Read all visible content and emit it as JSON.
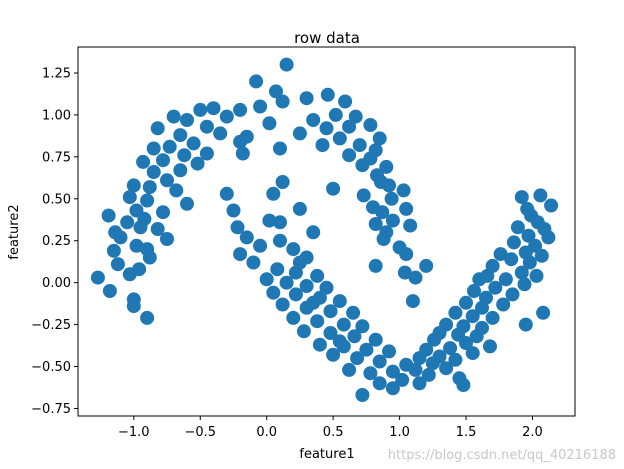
{
  "chart_data": {
    "type": "scatter",
    "title": "row data",
    "xlabel": "feature1",
    "ylabel": "feature2",
    "xlim": [
      -1.42,
      2.32
    ],
    "ylim": [
      -0.795,
      1.405
    ],
    "xticks": [
      -1.0,
      -0.5,
      0.0,
      0.5,
      1.0,
      1.5,
      2.0
    ],
    "xtick_labels": [
      "−1.0",
      "−0.5",
      "0.0",
      "0.5",
      "1.0",
      "1.5",
      "2.0"
    ],
    "yticks": [
      -0.75,
      -0.5,
      -0.25,
      0.0,
      0.25,
      0.5,
      0.75,
      1.0,
      1.25
    ],
    "ytick_labels": [
      "−0.75",
      "−0.50",
      "−0.25",
      "0.00",
      "0.25",
      "0.50",
      "0.75",
      "1.00",
      "1.25"
    ],
    "grid": false,
    "marker_color": "#1f77b4",
    "points": [
      [
        0.15,
        1.3
      ],
      [
        -0.08,
        1.2
      ],
      [
        0.07,
        1.14
      ],
      [
        0.3,
        1.1
      ],
      [
        0.46,
        1.12
      ],
      [
        0.59,
        1.08
      ],
      [
        -0.2,
        1.03
      ],
      [
        -0.4,
        1.04
      ],
      [
        -0.5,
        1.03
      ],
      [
        -0.05,
        1.05
      ],
      [
        0.12,
        1.08
      ],
      [
        -0.7,
        0.99
      ],
      [
        -0.6,
        0.97
      ],
      [
        -0.3,
        0.99
      ],
      [
        0.35,
        0.97
      ],
      [
        0.52,
        1.0
      ],
      [
        0.67,
        0.99
      ],
      [
        -0.82,
        0.92
      ],
      [
        -0.45,
        0.93
      ],
      [
        0.02,
        0.95
      ],
      [
        0.45,
        0.92
      ],
      [
        0.62,
        0.93
      ],
      [
        0.78,
        0.94
      ],
      [
        -0.65,
        0.88
      ],
      [
        -0.35,
        0.89
      ],
      [
        -0.15,
        0.87
      ],
      [
        0.25,
        0.89
      ],
      [
        0.55,
        0.86
      ],
      [
        0.85,
        0.86
      ],
      [
        -0.55,
        0.83
      ],
      [
        -0.2,
        0.84
      ],
      [
        0.42,
        0.82
      ],
      [
        0.7,
        0.82
      ],
      [
        -0.85,
        0.8
      ],
      [
        -0.73,
        0.81
      ],
      [
        0.1,
        0.8
      ],
      [
        0.82,
        0.79
      ],
      [
        -0.62,
        0.76
      ],
      [
        -0.45,
        0.77
      ],
      [
        -0.18,
        0.77
      ],
      [
        0.62,
        0.76
      ],
      [
        0.78,
        0.74
      ],
      [
        -0.93,
        0.72
      ],
      [
        -0.78,
        0.73
      ],
      [
        -0.52,
        0.71
      ],
      [
        0.72,
        0.7
      ],
      [
        0.9,
        0.69
      ],
      [
        -0.85,
        0.66
      ],
      [
        -0.65,
        0.67
      ],
      [
        0.83,
        0.64
      ],
      [
        -0.75,
        0.61
      ],
      [
        0.86,
        0.6
      ],
      [
        -1.0,
        0.58
      ],
      [
        -0.88,
        0.57
      ],
      [
        0.92,
        0.58
      ],
      [
        -0.68,
        0.55
      ],
      [
        0.5,
        0.56
      ],
      [
        1.03,
        0.55
      ],
      [
        -1.03,
        0.51
      ],
      [
        -0.9,
        0.49
      ],
      [
        0.73,
        0.52
      ],
      [
        0.94,
        0.5
      ],
      [
        -0.6,
        0.47
      ],
      [
        0.8,
        0.45
      ],
      [
        1.05,
        0.44
      ],
      [
        -0.98,
        0.43
      ],
      [
        -0.78,
        0.42
      ],
      [
        0.87,
        0.42
      ],
      [
        -1.19,
        0.4
      ],
      [
        -1.05,
        0.36
      ],
      [
        -0.92,
        0.38
      ],
      [
        0.95,
        0.37
      ],
      [
        -0.95,
        0.33
      ],
      [
        -0.82,
        0.32
      ],
      [
        0.82,
        0.35
      ],
      [
        1.08,
        0.34
      ],
      [
        -1.14,
        0.3
      ],
      [
        0.9,
        0.3
      ],
      [
        -1.1,
        0.27
      ],
      [
        -0.75,
        0.26
      ],
      [
        0.88,
        0.26
      ],
      [
        -0.98,
        0.22
      ],
      [
        -0.9,
        0.2
      ],
      [
        1.0,
        0.21
      ],
      [
        -1.15,
        0.19
      ],
      [
        -0.88,
        0.15
      ],
      [
        1.05,
        0.17
      ],
      [
        -1.12,
        0.11
      ],
      [
        -0.96,
        0.08
      ],
      [
        0.82,
        0.1
      ],
      [
        -1.27,
        0.03
      ],
      [
        -1.03,
        0.05
      ],
      [
        1.04,
        0.06
      ],
      [
        -1.18,
        -0.05
      ],
      [
        1.2,
        0.1
      ],
      [
        -1.0,
        -0.1
      ],
      [
        1.12,
        0.03
      ],
      [
        -1.0,
        -0.14
      ],
      [
        1.1,
        -0.11
      ],
      [
        -0.9,
        -0.21
      ],
      [
        2.06,
        0.52
      ],
      [
        1.92,
        0.51
      ],
      [
        1.96,
        0.44
      ],
      [
        2.14,
        0.46
      ],
      [
        1.99,
        0.4
      ],
      [
        2.04,
        0.36
      ],
      [
        1.89,
        0.33
      ],
      [
        2.09,
        0.32
      ],
      [
        1.97,
        0.28
      ],
      [
        2.12,
        0.27
      ],
      [
        1.86,
        0.24
      ],
      [
        2.02,
        0.22
      ],
      [
        1.95,
        0.18
      ],
      [
        2.07,
        0.16
      ],
      [
        1.76,
        0.17
      ],
      [
        1.84,
        0.14
      ],
      [
        1.98,
        0.12
      ],
      [
        1.7,
        0.1
      ],
      [
        1.92,
        0.06
      ],
      [
        2.03,
        0.04
      ],
      [
        1.66,
        0.04
      ],
      [
        1.8,
        0.02
      ],
      [
        1.6,
        0.02
      ],
      [
        1.94,
        -0.01
      ],
      [
        1.72,
        -0.03
      ],
      [
        1.56,
        -0.05
      ],
      [
        1.85,
        -0.07
      ],
      [
        1.65,
        -0.09
      ],
      [
        1.5,
        -0.12
      ],
      [
        1.78,
        -0.13
      ],
      [
        1.62,
        -0.15
      ],
      [
        1.42,
        -0.18
      ],
      [
        2.08,
        -0.18
      ],
      [
        1.55,
        -0.2
      ],
      [
        1.7,
        -0.21
      ],
      [
        1.35,
        -0.25
      ],
      [
        1.48,
        -0.26
      ],
      [
        1.62,
        -0.27
      ],
      [
        1.95,
        -0.25
      ],
      [
        1.3,
        -0.3
      ],
      [
        1.44,
        -0.31
      ],
      [
        1.58,
        -0.32
      ],
      [
        1.26,
        -0.34
      ],
      [
        1.5,
        -0.36
      ],
      [
        1.68,
        -0.38
      ],
      [
        1.38,
        -0.39
      ],
      [
        1.2,
        -0.4
      ],
      [
        1.55,
        -0.42
      ],
      [
        1.3,
        -0.44
      ],
      [
        1.15,
        -0.45
      ],
      [
        1.42,
        -0.46
      ],
      [
        1.25,
        -0.48
      ],
      [
        1.05,
        -0.49
      ],
      [
        1.35,
        -0.51
      ],
      [
        1.12,
        -0.52
      ],
      [
        0.95,
        -0.53
      ],
      [
        1.22,
        -0.55
      ],
      [
        1.45,
        -0.57
      ],
      [
        1.02,
        -0.58
      ],
      [
        1.15,
        -0.6
      ],
      [
        0.85,
        -0.6
      ],
      [
        1.48,
        -0.61
      ],
      [
        0.95,
        -0.63
      ],
      [
        -0.3,
        0.53
      ],
      [
        -0.25,
        0.43
      ],
      [
        0.05,
        0.53
      ],
      [
        0.12,
        0.6
      ],
      [
        0.25,
        0.44
      ],
      [
        0.35,
        0.3
      ],
      [
        0.02,
        0.37
      ],
      [
        -0.22,
        0.33
      ],
      [
        0.1,
        0.25
      ],
      [
        -0.05,
        0.22
      ],
      [
        -0.2,
        0.17
      ],
      [
        0.2,
        0.2
      ],
      [
        0.3,
        0.15
      ],
      [
        -0.1,
        0.12
      ],
      [
        0.08,
        0.08
      ],
      [
        0.22,
        0.06
      ],
      [
        0.38,
        0.04
      ],
      [
        0.0,
        0.02
      ],
      [
        0.15,
        0.0
      ],
      [
        0.3,
        -0.02
      ],
      [
        0.45,
        -0.03
      ],
      [
        0.05,
        -0.06
      ],
      [
        0.22,
        -0.07
      ],
      [
        0.4,
        -0.09
      ],
      [
        0.55,
        -0.11
      ],
      [
        0.12,
        -0.13
      ],
      [
        0.3,
        -0.15
      ],
      [
        0.48,
        -0.17
      ],
      [
        0.65,
        -0.18
      ],
      [
        0.2,
        -0.21
      ],
      [
        0.38,
        -0.23
      ],
      [
        0.58,
        -0.25
      ],
      [
        0.72,
        -0.26
      ],
      [
        0.28,
        -0.29
      ],
      [
        0.48,
        -0.3
      ],
      [
        0.66,
        -0.32
      ],
      [
        0.82,
        -0.34
      ],
      [
        0.4,
        -0.37
      ],
      [
        0.58,
        -0.38
      ],
      [
        0.75,
        -0.4
      ],
      [
        0.92,
        -0.41
      ],
      [
        0.5,
        -0.43
      ],
      [
        0.68,
        -0.45
      ],
      [
        0.85,
        -0.47
      ],
      [
        0.62,
        -0.52
      ],
      [
        0.78,
        -0.54
      ],
      [
        0.72,
        -0.67
      ],
      [
        -0.15,
        0.27
      ],
      [
        0.1,
        0.36
      ],
      [
        0.25,
        0.12
      ],
      [
        0.35,
        -0.12
      ],
      [
        0.55,
        -0.35
      ]
    ]
  },
  "watermark": "https://blog.csdn.net/qq_40216188"
}
